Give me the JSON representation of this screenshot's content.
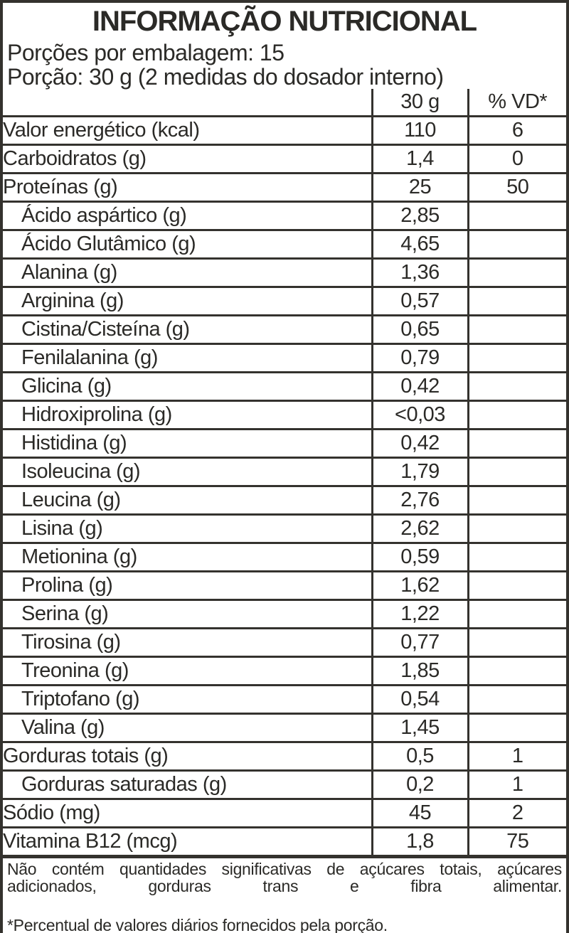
{
  "header": {
    "title": "INFORMAÇÃO NUTRICIONAL",
    "servings_per_package": "Porções por embalagem: 15",
    "serving_size": "Porção: 30 g (2 medidas do dosador interno)"
  },
  "table": {
    "columns": [
      "",
      "30 g",
      "% VD*"
    ],
    "rows": [
      {
        "label": "Valor energético (kcal)",
        "amount": "110",
        "vd": "6",
        "indent": false
      },
      {
        "label": "Carboidratos (g)",
        "amount": "1,4",
        "vd": "0",
        "indent": false
      },
      {
        "label": "Proteínas (g)",
        "amount": "25",
        "vd": "50",
        "indent": false
      },
      {
        "label": "Ácido aspártico (g)",
        "amount": "2,85",
        "vd": "",
        "indent": true
      },
      {
        "label": "Ácido Glutâmico (g)",
        "amount": "4,65",
        "vd": "",
        "indent": true
      },
      {
        "label": "Alanina (g)",
        "amount": "1,36",
        "vd": "",
        "indent": true
      },
      {
        "label": "Arginina (g)",
        "amount": "0,57",
        "vd": "",
        "indent": true
      },
      {
        "label": "Cistina/Cisteína (g)",
        "amount": "0,65",
        "vd": "",
        "indent": true
      },
      {
        "label": "Fenilalanina (g)",
        "amount": "0,79",
        "vd": "",
        "indent": true
      },
      {
        "label": "Glicina (g)",
        "amount": "0,42",
        "vd": "",
        "indent": true
      },
      {
        "label": "Hidroxiprolina (g)",
        "amount": "<0,03",
        "vd": "",
        "indent": true
      },
      {
        "label": "Histidina (g)",
        "amount": "0,42",
        "vd": "",
        "indent": true
      },
      {
        "label": "Isoleucina (g)",
        "amount": "1,79",
        "vd": "",
        "indent": true
      },
      {
        "label": "Leucina (g)",
        "amount": "2,76",
        "vd": "",
        "indent": true
      },
      {
        "label": "Lisina (g)",
        "amount": "2,62",
        "vd": "",
        "indent": true
      },
      {
        "label": "Metionina (g)",
        "amount": "0,59",
        "vd": "",
        "indent": true
      },
      {
        "label": "Prolina (g)",
        "amount": "1,62",
        "vd": "",
        "indent": true
      },
      {
        "label": "Serina (g)",
        "amount": "1,22",
        "vd": "",
        "indent": true
      },
      {
        "label": "Tirosina (g)",
        "amount": "0,77",
        "vd": "",
        "indent": true
      },
      {
        "label": "Treonina (g)",
        "amount": "1,85",
        "vd": "",
        "indent": true
      },
      {
        "label": "Triptofano (g)",
        "amount": "0,54",
        "vd": "",
        "indent": true
      },
      {
        "label": "Valina (g)",
        "amount": "1,45",
        "vd": "",
        "indent": true
      },
      {
        "label": "Gorduras totais (g)",
        "amount": "0,5",
        "vd": "1",
        "indent": false
      },
      {
        "label": "Gorduras saturadas (g)",
        "amount": "0,2",
        "vd": "1",
        "indent": true
      },
      {
        "label": "Sódio (mg)",
        "amount": "45",
        "vd": "2",
        "indent": false
      },
      {
        "label": "Vitamina B12 (mcg)",
        "amount": "1,8",
        "vd": "75",
        "indent": false
      }
    ]
  },
  "footnotes": {
    "no_significant": "Não contém quantidades significativas de açúcares totais, açúcares adicionados, gorduras trans e fibra alimentar.",
    "daily_values": "*Percentual de valores diários fornecidos pela porção."
  },
  "colors": {
    "text": "#2b2a27",
    "line": "#34322e",
    "bar": "#2e2c28"
  }
}
